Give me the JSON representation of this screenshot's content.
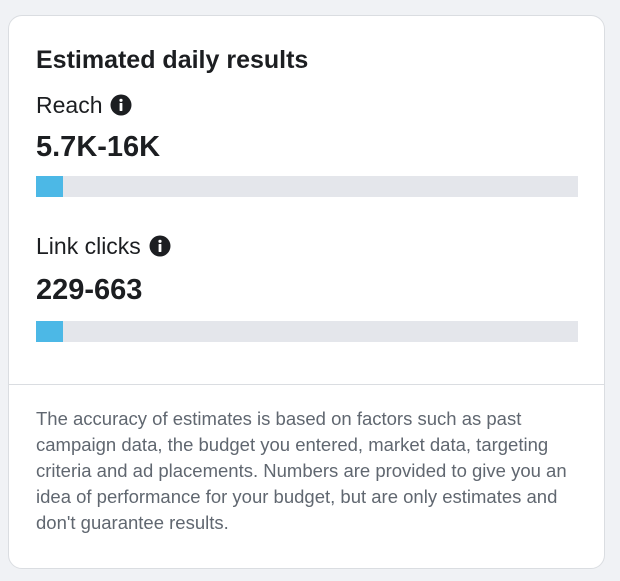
{
  "card": {
    "title": "Estimated daily results"
  },
  "metrics": [
    {
      "label": "Reach",
      "value": "5.7K-16K",
      "info_icon": "info-icon",
      "bar_fill_fraction": 0.05
    },
    {
      "label": "Link clicks",
      "value": "229-663",
      "info_icon": "info-icon",
      "bar_fill_fraction": 0.05
    }
  ],
  "disclaimer": "The accuracy of estimates is based on factors such as past campaign data, the budget you entered, market data, targeting criteria and ad placements. Numbers are provided to give you an idea of performance for your budget, but are only estimates and don't guarantee results.",
  "colors": {
    "bar_fill": "#4cb8e6",
    "bar_track": "#e4e6eb",
    "text_primary": "#1c1e21",
    "text_secondary": "#606770"
  }
}
